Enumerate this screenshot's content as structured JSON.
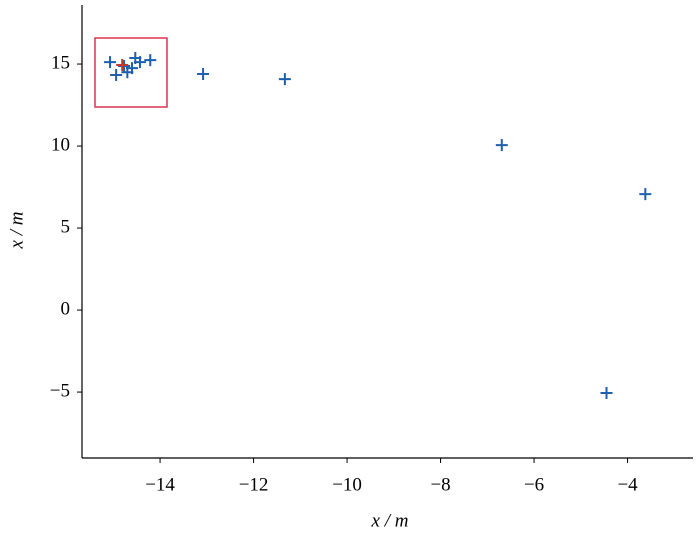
{
  "chart_data": {
    "type": "scatter",
    "xlabel": "x / m",
    "ylabel": "x / m",
    "xlim": [
      -15.67,
      -2.6
    ],
    "ylim": [
      -9.02,
      18.6
    ],
    "xticks": [
      {
        "value": -14,
        "label": "−14"
      },
      {
        "value": -12,
        "label": "−12"
      },
      {
        "value": -10,
        "label": "−10"
      },
      {
        "value": -8,
        "label": "−8"
      },
      {
        "value": -6,
        "label": "−6"
      },
      {
        "value": -4,
        "label": "−4"
      }
    ],
    "yticks": [
      {
        "value": -5,
        "label": "−5"
      },
      0,
      5,
      10,
      15
    ],
    "series": [
      {
        "color": "#1f5fae",
        "x": [
          -15.07,
          -14.94,
          -14.77,
          -14.7,
          -14.6,
          -14.53,
          -14.43,
          -14.21,
          -13.08,
          -11.33,
          -6.69,
          -3.62,
          -4.45
        ],
        "values": [
          15.12,
          14.33,
          14.88,
          14.5,
          14.75,
          15.37,
          15.12,
          15.24,
          14.39,
          14.08,
          10.06,
          7.07,
          -5.06
        ]
      },
      {
        "color": "#c0392b",
        "x": [
          -14.81
        ],
        "values": [
          14.94
        ]
      }
    ]
  }
}
